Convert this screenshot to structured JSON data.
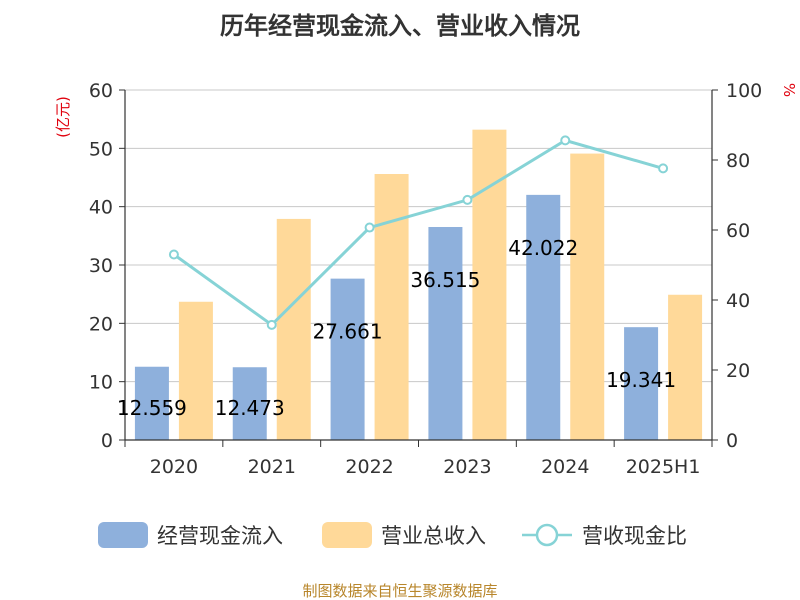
{
  "chart_data": {
    "type": "bar",
    "title": "历年经营现金流入、营业收入情况",
    "left_axis_unit": "(亿元)",
    "right_axis_unit": "%",
    "categories": [
      "2020",
      "2021",
      "2022",
      "2023",
      "2024",
      "2025H1"
    ],
    "y_left": {
      "min": 0,
      "max": 60,
      "ticks": [
        "0",
        "10",
        "20",
        "30",
        "40",
        "50",
        "60"
      ]
    },
    "y_right": {
      "min": 0,
      "max": 100,
      "ticks": [
        "0",
        "20",
        "40",
        "60",
        "80",
        "100"
      ]
    },
    "grid": true,
    "legend_position": "bottom",
    "series": [
      {
        "name": "经营现金流入",
        "type": "bar",
        "axis": "left",
        "color": "#8eb0dc",
        "values": [
          12.559,
          12.473,
          27.661,
          36.515,
          42.022,
          19.341
        ],
        "labels": [
          "12.559",
          "12.473",
          "27.661",
          "36.515",
          "42.022",
          "19.341"
        ]
      },
      {
        "name": "营业总收入",
        "type": "bar",
        "axis": "left",
        "color": "#ffd999",
        "values": [
          23.7,
          37.9,
          45.6,
          53.2,
          49.1,
          24.9
        ]
      },
      {
        "name": "营收现金比",
        "type": "line",
        "axis": "right",
        "color": "#86d3d6",
        "values": [
          53.0,
          32.9,
          60.7,
          68.6,
          85.6,
          77.6
        ]
      }
    ]
  },
  "source": "制图数据来自恒生聚源数据库"
}
